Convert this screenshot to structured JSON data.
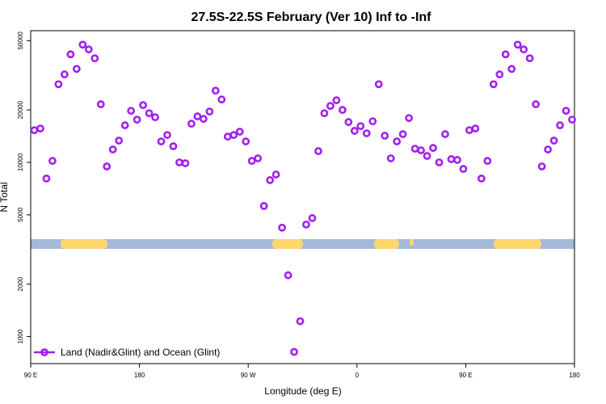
{
  "chart_data": {
    "type": "scatter",
    "title": "27.5S-22.5S February (Ver 10)   Inf to -Inf",
    "x_label": "Longitude (deg E)",
    "y_label": "N Total",
    "xlim": [
      90,
      540
    ],
    "xticks": [
      {
        "value": 90,
        "label": "90 E"
      },
      180,
      {
        "value": 270,
        "label": "90 W"
      },
      {
        "value": 360,
        "label": "0"
      },
      {
        "value": 450,
        "label": "90 E"
      },
      {
        "value": 540,
        "label": "180"
      }
    ],
    "ylim": [
      700,
      57000
    ],
    "y_scale": "log",
    "yticks": [
      1000,
      2000,
      5000,
      10000,
      20000,
      50000
    ],
    "legend_position": "lower-left",
    "series": [
      {
        "name": "Land (Nadir&Glint) and Ocean (Glint)",
        "color": "#a020f0",
        "x": [
          93,
          98,
          103,
          108,
          113,
          118,
          123,
          128,
          133,
          138,
          143,
          148,
          153,
          158,
          163,
          168,
          173,
          178,
          183,
          188,
          193,
          198,
          203,
          208,
          213,
          218,
          223,
          228,
          233,
          238,
          243,
          248,
          253,
          258,
          263,
          268,
          273,
          278,
          283,
          288,
          293,
          298,
          303,
          308,
          313,
          318,
          323,
          328,
          333,
          338,
          343,
          348,
          353,
          358,
          363,
          368,
          373,
          378,
          383,
          388,
          393,
          398,
          403,
          408,
          413,
          418,
          423,
          428,
          433,
          438,
          443,
          448,
          453,
          458,
          463,
          468,
          473,
          478,
          483,
          488,
          493,
          498,
          503,
          508,
          513,
          518,
          523,
          528,
          533,
          538
        ],
        "values": [
          15300,
          15650,
          8080,
          10200,
          28100,
          32000,
          41700,
          34400,
          47400,
          44500,
          39600,
          21550,
          9480,
          11860,
          13340,
          16330,
          19780,
          17590,
          21320,
          19150,
          18160,
          13190,
          14360,
          12380,
          10000,
          9890,
          16680,
          18370,
          17780,
          19580,
          25820,
          22970,
          14060,
          14360,
          15000,
          13190,
          10200,
          10550,
          5620,
          7910,
          8520,
          4220,
          2250,
          817,
          1225,
          4400,
          4790,
          11610,
          19150,
          21090,
          22720,
          20000,
          17040,
          15170,
          16150,
          14690,
          17220,
          28100,
          14220,
          10550,
          13190,
          14520,
          17970,
          11990,
          11730,
          10890,
          12110,
          10000,
          14520,
          10440,
          10330,
          9180,
          15300,
          15650,
          8080,
          10200,
          28100,
          32000,
          41700,
          34400,
          47400,
          44500,
          39600,
          21550,
          9480,
          11860,
          13340,
          16330,
          19780,
          17590
        ]
      }
    ]
  }
}
